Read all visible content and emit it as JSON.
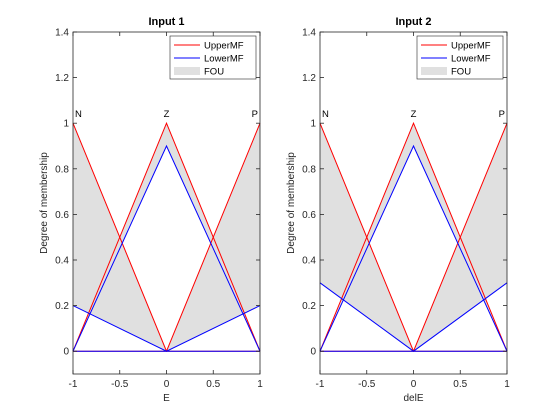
{
  "chart_data": [
    {
      "type": "line",
      "title": "Input 1",
      "xlabel": "E",
      "ylabel": "Degree of membership",
      "xlim": [
        -1,
        1
      ],
      "ylim": [
        -0.1,
        1.4
      ],
      "xticks": [
        "-1",
        "-0.5",
        "0",
        "0.5",
        "1"
      ],
      "yticks": [
        "0",
        "0.2",
        "0.4",
        "0.6",
        "0.8",
        "1",
        "1.2",
        "1.4"
      ],
      "legend": [
        "UpperMF",
        "LowerMF",
        "FOU"
      ],
      "legend_position": "top-right",
      "grid": false,
      "mf_labels": [
        {
          "text": "N",
          "x": -1
        },
        {
          "text": "Z",
          "x": 0
        },
        {
          "text": "P",
          "x": 1
        }
      ],
      "series": [
        {
          "name": "UpperMF",
          "color": "#ff0000",
          "mfs": [
            [
              [
                -1,
                1
              ],
              [
                0,
                0
              ],
              [
                1,
                0
              ]
            ],
            [
              [
                -1,
                0
              ],
              [
                0,
                1
              ],
              [
                1,
                0
              ]
            ],
            [
              [
                -1,
                0
              ],
              [
                0,
                0
              ],
              [
                1,
                1
              ]
            ]
          ]
        },
        {
          "name": "LowerMF",
          "color": "#0000ff",
          "mfs": [
            [
              [
                -1,
                0.2
              ],
              [
                0,
                0
              ],
              [
                1,
                0
              ]
            ],
            [
              [
                -1,
                0
              ],
              [
                0,
                0.9
              ],
              [
                1,
                0
              ]
            ],
            [
              [
                -1,
                0
              ],
              [
                0,
                0
              ],
              [
                1,
                0.2
              ]
            ]
          ]
        }
      ]
    },
    {
      "type": "line",
      "title": "Input 2",
      "xlabel": "delE",
      "ylabel": "Degree of membership",
      "xlim": [
        -1,
        1
      ],
      "ylim": [
        -0.1,
        1.4
      ],
      "xticks": [
        "-1",
        "-0.5",
        "0",
        "0.5",
        "1"
      ],
      "yticks": [
        "0",
        "0.2",
        "0.4",
        "0.6",
        "0.8",
        "1",
        "1.2",
        "1.4"
      ],
      "legend": [
        "UpperMF",
        "LowerMF",
        "FOU"
      ],
      "legend_position": "top-right",
      "grid": false,
      "mf_labels": [
        {
          "text": "N",
          "x": -1
        },
        {
          "text": "Z",
          "x": 0
        },
        {
          "text": "P",
          "x": 1
        }
      ],
      "series": [
        {
          "name": "UpperMF",
          "color": "#ff0000",
          "mfs": [
            [
              [
                -1,
                1
              ],
              [
                0,
                0
              ],
              [
                1,
                0
              ]
            ],
            [
              [
                -1,
                0
              ],
              [
                0,
                1
              ],
              [
                1,
                0
              ]
            ],
            [
              [
                -1,
                0
              ],
              [
                0,
                0
              ],
              [
                1,
                1
              ]
            ]
          ]
        },
        {
          "name": "LowerMF",
          "color": "#0000ff",
          "mfs": [
            [
              [
                -1,
                0.3
              ],
              [
                0,
                0
              ],
              [
                1,
                0
              ]
            ],
            [
              [
                -1,
                0
              ],
              [
                0,
                0.9
              ],
              [
                1,
                0
              ]
            ],
            [
              [
                -1,
                0
              ],
              [
                0,
                0
              ],
              [
                1,
                0.3
              ]
            ]
          ]
        }
      ]
    }
  ],
  "colors": {
    "fou_fill": "#e0e0e0",
    "axis": "#262626",
    "upper": "#ff0000",
    "lower": "#0000ff"
  }
}
